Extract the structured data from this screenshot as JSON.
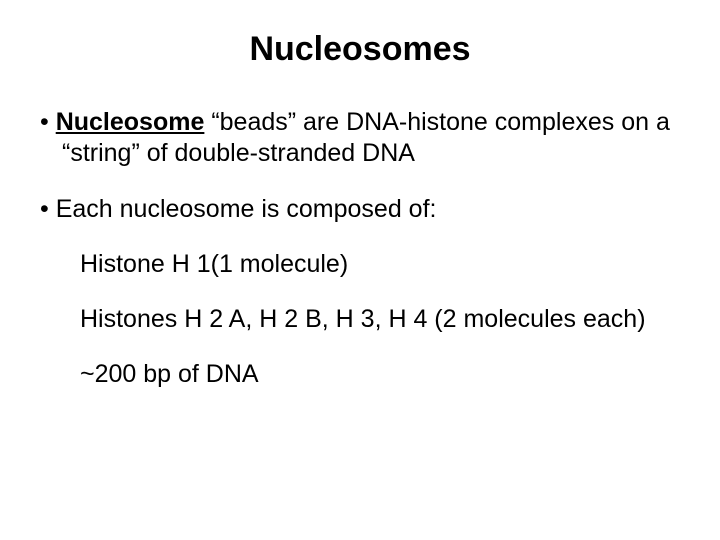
{
  "title": "Nucleosomes",
  "bullet1_bold": "Nucleosome",
  "bullet1_rest": " “beads” are DNA-histone complexes on a “string” of double-stranded DNA",
  "bullet2": "Each nucleosome is composed of:",
  "sub1": "Histone H 1(1 molecule)",
  "sub2": "Histones H 2 A, H 2 B, H 3, H 4 (2 molecules each)",
  "sub3": "~200 bp of DNA",
  "colors": {
    "background": "#ffffff",
    "text": "#000000"
  },
  "fonts": {
    "title_size_pt": 34,
    "body_size_pt": 25,
    "family": "Arial"
  }
}
